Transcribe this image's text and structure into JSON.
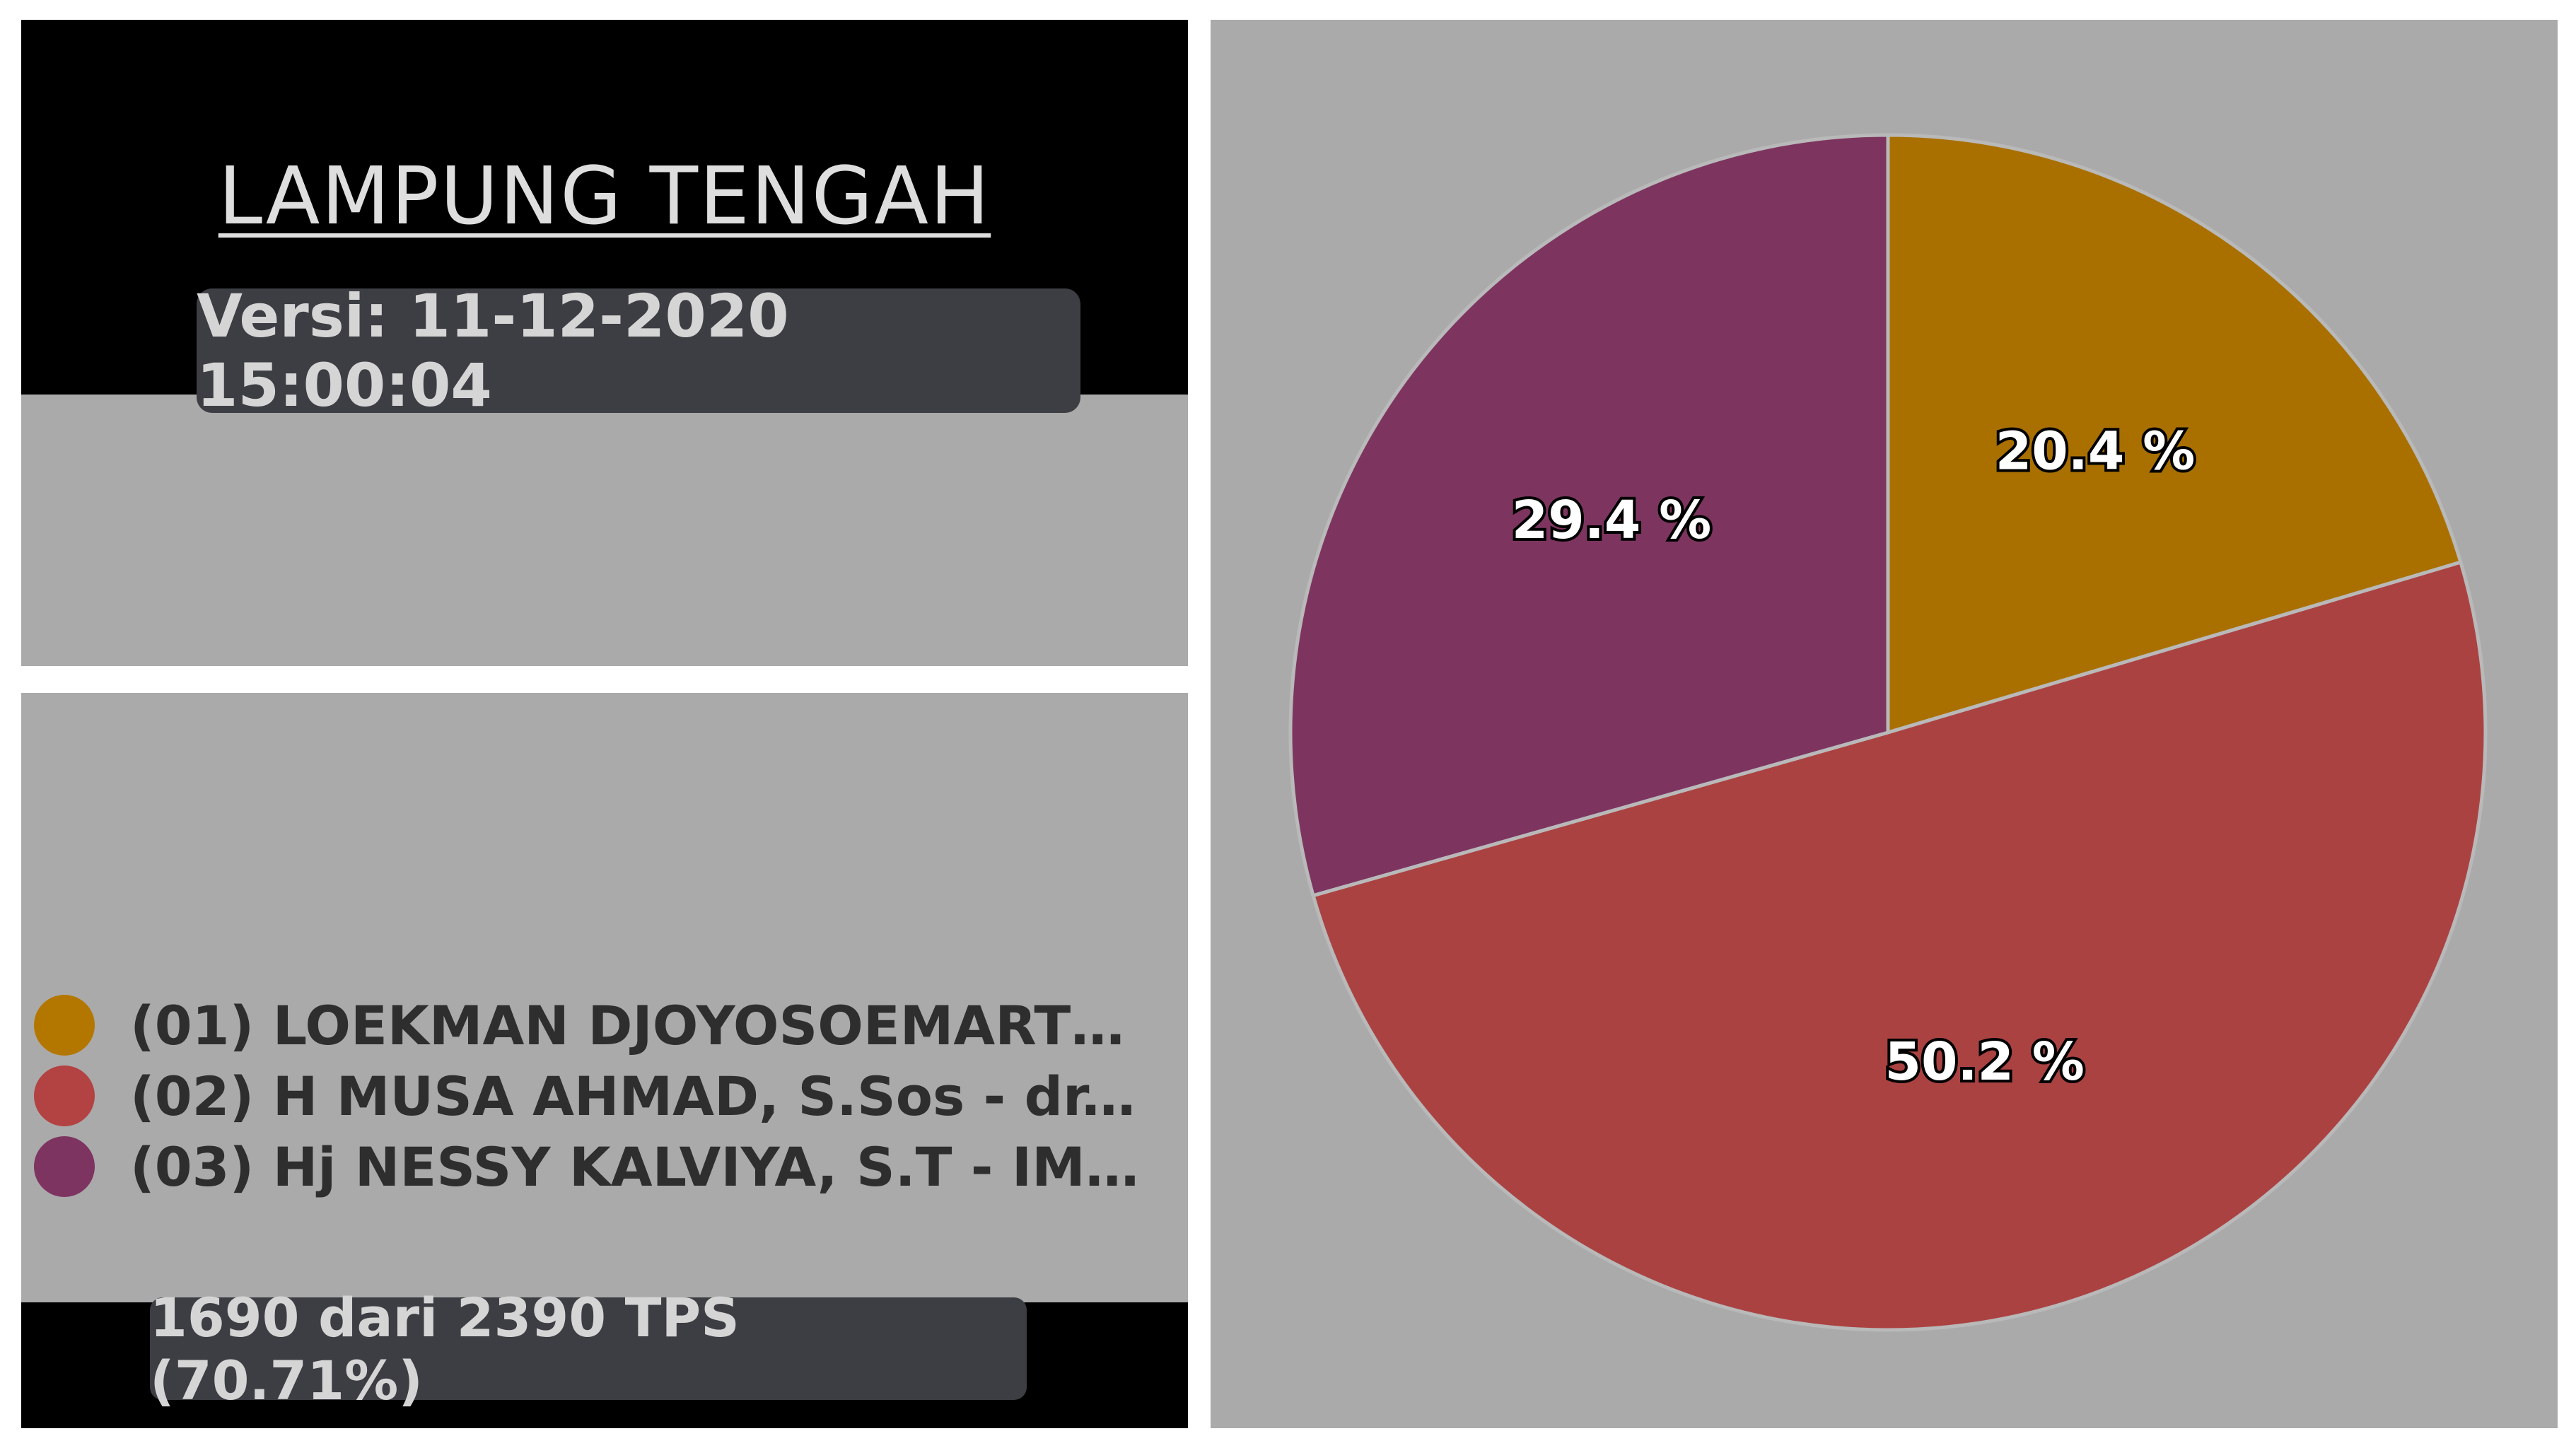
{
  "header": {
    "title": "LAMPUNG TENGAH",
    "version": "Versi: 11-12-2020 15:00:04"
  },
  "legend": {
    "items": [
      {
        "label": "(01) LOEKMAN DJOYOSOEMARTO -…",
        "color": "#b37700"
      },
      {
        "label": "(02) H MUSA AHMAD, S.Sos - dr.H …",
        "color": "#b34242"
      },
      {
        "label": "(03) Hj NESSY KALVIYA, S.T - IMAM…",
        "color": "#7e3460"
      }
    ]
  },
  "footer": {
    "tps_text": "1690 dari 2390 TPS (70.71%)"
  },
  "chart_data": {
    "type": "pie",
    "categories": [
      "(01) LOEKMAN DJOYOSOEMARTO -…",
      "(02) H MUSA AHMAD, S.Sos - dr.H …",
      "(03) Hj NESSY KALVIYA, S.T - IMAM…"
    ],
    "values": [
      20.4,
      50.2,
      29.4
    ],
    "labels": [
      "20.4 %",
      "50.2 %",
      "29.4 %"
    ],
    "colors": [
      "#a97000",
      "#ab4242",
      "#7d3560"
    ],
    "start": "top",
    "direction": "clockwise",
    "slice_border_color": "#b9b9b9"
  }
}
